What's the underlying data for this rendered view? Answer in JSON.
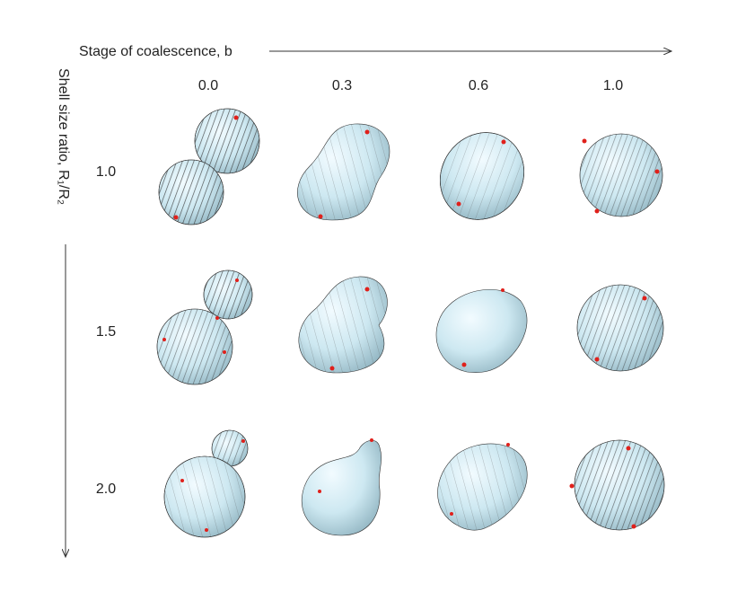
{
  "x_axis": {
    "title": "Stage of coalescence, b",
    "labels": [
      "0.0",
      "0.3",
      "0.6",
      "1.0"
    ]
  },
  "y_axis": {
    "title": "Shell size ratio, R₁/R₂",
    "labels": [
      "1.0",
      "1.5",
      "2.0"
    ]
  }
}
